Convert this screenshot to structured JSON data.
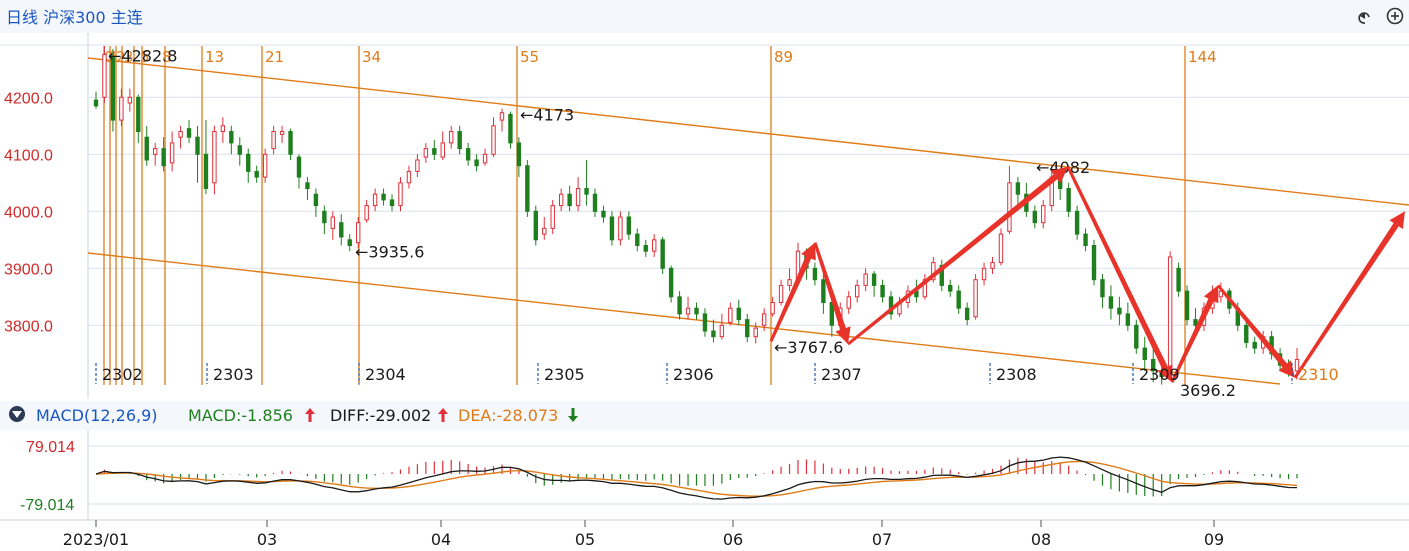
{
  "header": {
    "title": "日线 沪深300 主连",
    "undo_icon": "undo-icon",
    "add_icon": "add-circle-icon"
  },
  "colors": {
    "up": "#e0303a",
    "down": "#1f7f1f",
    "fib": "#e07b18",
    "price_axis": "#d12a2a",
    "macd_title": "#1a56c2",
    "dif_line": "#1a1a1a",
    "dea_line": "#e07b18",
    "arrow": "#e8332b",
    "grid": "#d9e2ef"
  },
  "chart_data": [
    {
      "type": "candlestick",
      "ylim": [
        3690,
        4290
      ],
      "y_ticks": [
        "4200.0",
        "4100.0",
        "4000.0",
        "3900.0",
        "3800.0"
      ],
      "y_tick_values": [
        4200,
        4100,
        4000,
        3900,
        3800
      ],
      "x_month_labels": [
        "2302",
        "2303",
        "2304",
        "2305",
        "2306",
        "2307",
        "2308",
        "2309",
        "2310"
      ],
      "fib_labels": [
        "0",
        "1",
        "2",
        "3",
        "5",
        "8",
        "13",
        "21",
        "34",
        "55",
        "89",
        "144"
      ],
      "price_annotations": [
        "←4282.8",
        "←4173",
        "←3935.6",
        "←4082",
        "←3767.6",
        "3696.2"
      ],
      "trend_arrows": [
        {
          "from": [
            3767,
            3775
          ],
          "to": [
            3945,
            3945
          ]
        },
        {
          "from": [
            3945,
            3945
          ],
          "to": [
            3767,
            3767
          ]
        },
        {
          "from": [
            3767,
            3767
          ],
          "to": [
            4082,
            4082
          ]
        },
        {
          "from": [
            4082,
            4082
          ],
          "to": [
            3696,
            3696
          ]
        },
        {
          "from": [
            3696,
            3696
          ],
          "to": [
            3870,
            3870
          ]
        },
        {
          "from": [
            3870,
            3870
          ],
          "to": [
            3705,
            3705
          ]
        },
        {
          "from": [
            3705,
            3705
          ],
          "to": [
            4000,
            4000
          ]
        }
      ],
      "series_note_rows": [
        [
          4195,
          4185,
          4210,
          4180
        ],
        [
          4200,
          4275,
          4290,
          4190
        ],
        [
          4270,
          4160,
          4285,
          4140
        ],
        [
          4160,
          4200,
          4215,
          4150
        ],
        [
          4190,
          4200,
          4215,
          4175
        ],
        [
          4200,
          4140,
          4205,
          4120
        ],
        [
          4130,
          4090,
          4150,
          4080
        ],
        [
          4100,
          4110,
          4120,
          4080
        ],
        [
          4110,
          4080,
          4130,
          4070
        ],
        [
          4085,
          4120,
          4140,
          4070
        ],
        [
          4130,
          4140,
          4150,
          4110
        ],
        [
          4145,
          4130,
          4160,
          4120
        ],
        [
          4130,
          4100,
          4150,
          4050
        ],
        [
          4100,
          4040,
          4160,
          4030
        ],
        [
          4050,
          4140,
          4150,
          4030
        ],
        [
          4140,
          4150,
          4165,
          4120
        ],
        [
          4140,
          4120,
          4150,
          4100
        ],
        [
          4115,
          4100,
          4130,
          4080
        ],
        [
          4100,
          4070,
          4110,
          4050
        ],
        [
          4070,
          4060,
          4080,
          4050
        ],
        [
          4060,
          4100,
          4110,
          4050
        ],
        [
          4110,
          4140,
          4150,
          4100
        ],
        [
          4135,
          4140,
          4150,
          4120
        ],
        [
          4140,
          4100,
          4145,
          4090
        ],
        [
          4095,
          4060,
          4100,
          4040
        ],
        [
          4050,
          4040,
          4060,
          4020
        ],
        [
          4030,
          4010,
          4040,
          3990
        ],
        [
          4000,
          3980,
          4010,
          3960
        ],
        [
          3970,
          3990,
          4000,
          3950
        ],
        [
          3980,
          3955,
          3995,
          3940
        ],
        [
          3950,
          3940,
          3960,
          3930
        ],
        [
          3945,
          3980,
          3990,
          3935
        ],
        [
          3985,
          4010,
          4020,
          3980
        ],
        [
          4010,
          4030,
          4040,
          4000
        ],
        [
          4030,
          4020,
          4040,
          4010
        ],
        [
          4020,
          4010,
          4030,
          4000
        ],
        [
          4010,
          4050,
          4060,
          4000
        ],
        [
          4050,
          4070,
          4080,
          4040
        ],
        [
          4070,
          4090,
          4100,
          4060
        ],
        [
          4095,
          4110,
          4120,
          4085
        ],
        [
          4110,
          4100,
          4125,
          4090
        ],
        [
          4095,
          4120,
          4140,
          4090
        ],
        [
          4120,
          4140,
          4150,
          4110
        ],
        [
          4140,
          4110,
          4150,
          4100
        ],
        [
          4110,
          4090,
          4120,
          4080
        ],
        [
          4090,
          4080,
          4100,
          4070
        ],
        [
          4085,
          4100,
          4110,
          4080
        ],
        [
          4100,
          4150,
          4165,
          4095
        ],
        [
          4160,
          4173,
          4180,
          4140
        ],
        [
          4170,
          4120,
          4175,
          4110
        ],
        [
          4120,
          4080,
          4130,
          4060
        ],
        [
          4080,
          4000,
          4090,
          3990
        ],
        [
          4000,
          3950,
          4010,
          3940
        ],
        [
          3960,
          3970,
          3990,
          3950
        ],
        [
          3970,
          4010,
          4020,
          3960
        ],
        [
          4010,
          4030,
          4040,
          4000
        ],
        [
          4030,
          4010,
          4045,
          4000
        ],
        [
          4010,
          4040,
          4060,
          4000
        ],
        [
          4040,
          4030,
          4090,
          4010
        ],
        [
          4030,
          4000,
          4040,
          3990
        ],
        [
          4000,
          3990,
          4010,
          3980
        ],
        [
          3990,
          3950,
          4000,
          3940
        ],
        [
          3950,
          3990,
          4000,
          3940
        ],
        [
          3990,
          3960,
          4000,
          3950
        ],
        [
          3960,
          3940,
          3970,
          3930
        ],
        [
          3940,
          3930,
          3950,
          3920
        ],
        [
          3930,
          3950,
          3960,
          3920
        ],
        [
          3950,
          3900,
          3955,
          3890
        ],
        [
          3900,
          3850,
          3905,
          3840
        ],
        [
          3850,
          3820,
          3860,
          3810
        ],
        [
          3820,
          3830,
          3850,
          3810
        ],
        [
          3830,
          3820,
          3840,
          3810
        ],
        [
          3820,
          3790,
          3830,
          3780
        ],
        [
          3790,
          3780,
          3810,
          3770
        ],
        [
          3780,
          3800,
          3820,
          3775
        ],
        [
          3805,
          3830,
          3840,
          3800
        ],
        [
          3830,
          3810,
          3845,
          3800
        ],
        [
          3810,
          3780,
          3820,
          3770
        ],
        [
          3780,
          3795,
          3805,
          3768
        ],
        [
          3800,
          3820,
          3830,
          3790
        ],
        [
          3820,
          3840,
          3850,
          3815
        ],
        [
          3840,
          3870,
          3880,
          3835
        ],
        [
          3870,
          3880,
          3900,
          3860
        ],
        [
          3880,
          3930,
          3945,
          3875
        ],
        [
          3925,
          3900,
          3935,
          3880
        ],
        [
          3900,
          3880,
          3910,
          3870
        ],
        [
          3880,
          3840,
          3890,
          3820
        ],
        [
          3840,
          3800,
          3850,
          3780
        ],
        [
          3800,
          3830,
          3840,
          3790
        ],
        [
          3830,
          3850,
          3860,
          3820
        ],
        [
          3850,
          3870,
          3880,
          3840
        ],
        [
          3870,
          3890,
          3900,
          3860
        ],
        [
          3890,
          3870,
          3895,
          3850
        ],
        [
          3870,
          3850,
          3880,
          3840
        ],
        [
          3850,
          3820,
          3860,
          3810
        ],
        [
          3820,
          3840,
          3850,
          3815
        ],
        [
          3840,
          3860,
          3870,
          3830
        ],
        [
          3860,
          3850,
          3880,
          3840
        ],
        [
          3850,
          3880,
          3890,
          3845
        ],
        [
          3880,
          3910,
          3920,
          3875
        ],
        [
          3905,
          3870,
          3915,
          3860
        ],
        [
          3870,
          3860,
          3880,
          3850
        ],
        [
          3860,
          3830,
          3870,
          3820
        ],
        [
          3830,
          3810,
          3840,
          3800
        ],
        [
          3815,
          3880,
          3890,
          3810
        ],
        [
          3880,
          3900,
          3910,
          3870
        ],
        [
          3900,
          3910,
          3920,
          3890
        ],
        [
          3910,
          3960,
          3970,
          3905
        ],
        [
          3965,
          4050,
          4080,
          3960
        ],
        [
          4050,
          4030,
          4060,
          4010
        ],
        [
          4030,
          4000,
          4050,
          3990
        ],
        [
          4000,
          3980,
          4010,
          3970
        ],
        [
          3980,
          4010,
          4020,
          3970
        ],
        [
          4010,
          4060,
          4082,
          4000
        ],
        [
          4060,
          4040,
          4070,
          4020
        ],
        [
          4040,
          4000,
          4050,
          3990
        ],
        [
          4000,
          3960,
          4010,
          3950
        ],
        [
          3960,
          3940,
          3970,
          3930
        ],
        [
          3940,
          3880,
          3950,
          3870
        ],
        [
          3880,
          3850,
          3890,
          3830
        ],
        [
          3850,
          3830,
          3870,
          3810
        ],
        [
          3830,
          3820,
          3850,
          3800
        ],
        [
          3820,
          3800,
          3840,
          3790
        ],
        [
          3800,
          3760,
          3810,
          3750
        ],
        [
          3760,
          3740,
          3780,
          3720
        ],
        [
          3740,
          3720,
          3760,
          3700
        ],
        [
          3720,
          3710,
          3730,
          3696
        ],
        [
          3720,
          3920,
          3930,
          3715
        ],
        [
          3900,
          3860,
          3910,
          3850
        ],
        [
          3860,
          3810,
          3870,
          3800
        ],
        [
          3810,
          3800,
          3830,
          3790
        ],
        [
          3800,
          3830,
          3840,
          3790
        ],
        [
          3830,
          3850,
          3870,
          3820
        ],
        [
          3850,
          3860,
          3875,
          3840
        ],
        [
          3860,
          3830,
          3865,
          3820
        ],
        [
          3830,
          3800,
          3840,
          3790
        ],
        [
          3800,
          3770,
          3810,
          3760
        ],
        [
          3770,
          3760,
          3780,
          3750
        ],
        [
          3760,
          3780,
          3790,
          3750
        ],
        [
          3780,
          3750,
          3790,
          3740
        ],
        [
          3750,
          3730,
          3760,
          3720
        ],
        [
          3730,
          3720,
          3740,
          3710
        ],
        [
          3720,
          3740,
          3760,
          3705
        ]
      ]
    },
    {
      "type": "macd",
      "title": "MACD(12,26,9)",
      "macd_label": "MACD:-1.856",
      "diff_label": "DIFF:-29.002",
      "dea_label": "DEA:-28.073",
      "y_ticks": [
        "79.014",
        "-79.014"
      ],
      "ylim": [
        -79.014,
        79.014
      ],
      "x_labels": [
        "2023/01",
        "03",
        "04",
        "05",
        "06",
        "07",
        "08",
        "09"
      ]
    }
  ]
}
